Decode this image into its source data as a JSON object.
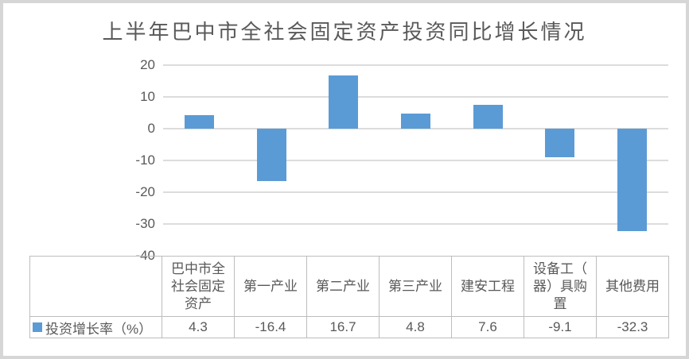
{
  "chart_data": {
    "type": "bar",
    "title": "上半年巴中市全社会固定资产投资同比增长情况",
    "categories": [
      "巴中市全社会固定资产",
      "第一产业",
      "第二产业",
      "第三产业",
      "建安工程",
      "设备工（器）具购置",
      "其他费用"
    ],
    "category_labels_wrapped": [
      "巴中市全\n社会固定\n资产",
      "第一产业",
      "第二产业",
      "第三产业",
      "建安工程",
      "设备工（\n器）具购\n置",
      "其他费用"
    ],
    "series": [
      {
        "name": "投资增长率（%）",
        "values": [
          4.3,
          -16.4,
          16.7,
          4.8,
          7.6,
          -9.1,
          -32.3
        ]
      }
    ],
    "xlabel": "",
    "ylabel": "",
    "ylim": [
      -40,
      20
    ],
    "yticks": [
      20,
      10,
      0,
      -10,
      -20,
      -30,
      -40
    ],
    "grid": true,
    "legend_position": "data-table-left",
    "data_table_shown": true,
    "bar_color": "#5B9BD5"
  },
  "colors": {
    "bar": "#5B9BD5",
    "gridline": "#DCDCDC",
    "table_border": "#BDBDBD",
    "text": "#595959",
    "frame": "#D6D6D6",
    "background": "#FFFFFF"
  }
}
